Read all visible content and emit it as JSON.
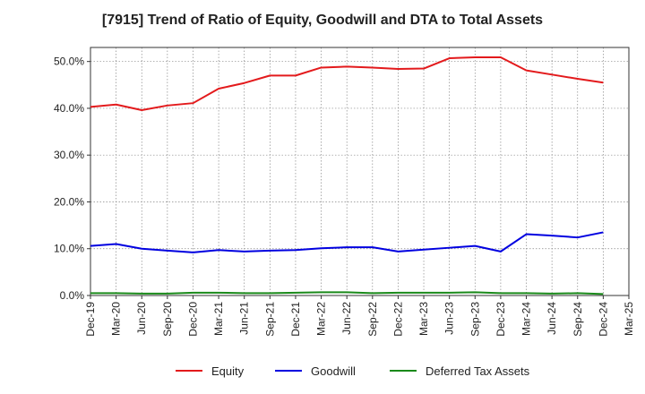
{
  "chart_data": {
    "type": "line",
    "title": "[7915]  Trend of Ratio of Equity, Goodwill and DTA to Total Assets",
    "xlabel": "",
    "ylabel": "",
    "x_tick_labels": [
      "Dec-19",
      "Mar-20",
      "Jun-20",
      "Sep-20",
      "Dec-20",
      "Mar-21",
      "Jun-21",
      "Sep-21",
      "Dec-21",
      "Mar-22",
      "Jun-22",
      "Sep-22",
      "Dec-22",
      "Mar-23",
      "Jun-23",
      "Sep-23",
      "Dec-23",
      "Mar-24",
      "Jun-24",
      "Sep-24",
      "Dec-24",
      "Mar-25"
    ],
    "ylim": [
      0,
      53
    ],
    "y_ticks": [
      0,
      10,
      20,
      30,
      40,
      50
    ],
    "y_tick_labels": [
      "0.0%",
      "10.0%",
      "20.0%",
      "30.0%",
      "40.0%",
      "50.0%"
    ],
    "grid": true,
    "legend_position": "bottom",
    "series": [
      {
        "name": "Equity",
        "color": "#e31a1c",
        "x": [
          "Dec-19",
          "Mar-20",
          "Jun-20",
          "Sep-20",
          "Dec-20",
          "Mar-21",
          "Jun-21",
          "Sep-21",
          "Dec-21",
          "Mar-22",
          "Jun-22",
          "Sep-22",
          "Dec-22",
          "Mar-23",
          "Jun-23",
          "Sep-23",
          "Dec-23",
          "Mar-24",
          "Jun-24",
          "Sep-24",
          "Dec-24"
        ],
        "values": [
          40.3,
          40.8,
          39.6,
          40.6,
          41.1,
          44.2,
          45.4,
          47.0,
          47.0,
          48.7,
          48.9,
          48.7,
          48.4,
          48.5,
          50.7,
          50.9,
          50.9,
          48.1,
          47.2,
          46.3,
          45.5
        ]
      },
      {
        "name": "Goodwill",
        "color": "#0000e0",
        "x": [
          "Dec-19",
          "Mar-20",
          "Jun-20",
          "Sep-20",
          "Dec-20",
          "Mar-21",
          "Jun-21",
          "Sep-21",
          "Dec-21",
          "Mar-22",
          "Jun-22",
          "Sep-22",
          "Dec-22",
          "Mar-23",
          "Jun-23",
          "Sep-23",
          "Dec-23",
          "Mar-24",
          "Jun-24",
          "Sep-24",
          "Dec-24"
        ],
        "values": [
          10.6,
          11.0,
          10.0,
          9.6,
          9.2,
          9.7,
          9.4,
          9.6,
          9.7,
          10.1,
          10.3,
          10.3,
          9.4,
          9.8,
          10.2,
          10.6,
          9.4,
          13.1,
          12.8,
          12.4,
          13.5
        ]
      },
      {
        "name": "Deferred Tax Assets",
        "color": "#1a8a1a",
        "x": [
          "Dec-19",
          "Mar-20",
          "Jun-20",
          "Sep-20",
          "Dec-20",
          "Mar-21",
          "Jun-21",
          "Sep-21",
          "Dec-21",
          "Mar-22",
          "Jun-22",
          "Sep-22",
          "Dec-22",
          "Mar-23",
          "Jun-23",
          "Sep-23",
          "Dec-23",
          "Mar-24",
          "Jun-24",
          "Sep-24",
          "Dec-24"
        ],
        "values": [
          0.5,
          0.5,
          0.4,
          0.4,
          0.6,
          0.6,
          0.5,
          0.5,
          0.6,
          0.7,
          0.7,
          0.5,
          0.6,
          0.6,
          0.6,
          0.7,
          0.5,
          0.5,
          0.4,
          0.5,
          0.3
        ]
      }
    ]
  }
}
